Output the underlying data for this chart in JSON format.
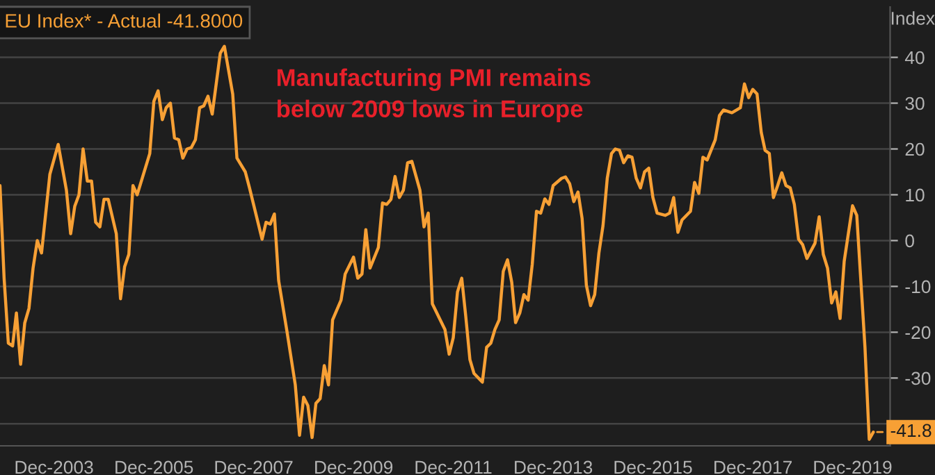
{
  "chart_data": {
    "type": "line",
    "title": "EU Index* - Actual -41.8000",
    "ylabel": "Index",
    "annotations": [
      "Manufacturing PMI remains\nbelow 2009 lows in Europe",
      {
        "text": "-41.8",
        "x": "2020-05",
        "y": -41.8
      }
    ],
    "x": [
      "2002-11",
      "2002-12",
      "2003-01",
      "2003-02",
      "2003-03",
      "2003-04",
      "2003-05",
      "2003-06",
      "2003-07",
      "2003-08",
      "2003-09",
      "2003-11",
      "2004-01",
      "2004-03",
      "2004-04",
      "2004-05",
      "2004-06",
      "2004-07",
      "2004-08",
      "2004-09",
      "2004-10",
      "2004-11",
      "2004-12",
      "2005-01",
      "2005-03",
      "2005-04",
      "2005-05",
      "2005-06",
      "2005-07",
      "2005-08",
      "2005-11",
      "2005-12",
      "2006-01",
      "2006-02",
      "2006-03",
      "2006-04",
      "2006-05",
      "2006-06",
      "2006-07",
      "2006-08",
      "2006-09",
      "2006-10",
      "2006-11",
      "2006-12",
      "2007-01",
      "2007-02",
      "2007-04",
      "2007-05",
      "2007-07",
      "2007-08",
      "2007-10",
      "2007-11",
      "2008-02",
      "2008-03",
      "2008-04",
      "2008-05",
      "2008-06",
      "2008-08",
      "2008-10",
      "2008-11",
      "2008-12",
      "2009-01",
      "2009-02",
      "2009-03",
      "2009-04",
      "2009-05",
      "2009-06",
      "2009-07",
      "2009-09",
      "2009-10",
      "2009-12",
      "2010-01",
      "2010-02",
      "2010-03",
      "2010-04",
      "2010-06",
      "2010-07",
      "2010-08",
      "2010-09",
      "2010-10",
      "2010-11",
      "2010-12",
      "2011-01",
      "2011-02",
      "2011-04",
      "2011-05",
      "2011-06",
      "2011-07",
      "2011-10",
      "2011-11",
      "2011-12",
      "2012-01",
      "2012-02",
      "2012-03",
      "2012-04",
      "2012-05",
      "2012-07",
      "2012-08",
      "2012-09",
      "2012-10",
      "2012-11",
      "2012-12",
      "2013-01",
      "2013-02",
      "2013-03",
      "2013-04",
      "2013-05",
      "2013-06",
      "2013-07",
      "2013-08",
      "2013-09",
      "2013-10",
      "2013-11",
      "2013-12",
      "2014-02",
      "2014-03",
      "2014-04",
      "2014-05",
      "2014-06",
      "2014-07",
      "2014-08",
      "2014-09",
      "2014-10",
      "2014-11",
      "2014-12",
      "2015-01",
      "2015-02",
      "2015-03",
      "2015-04",
      "2015-05",
      "2015-06",
      "2015-07",
      "2015-08",
      "2015-09",
      "2015-10",
      "2015-11",
      "2015-12",
      "2016-01",
      "2016-03",
      "2016-04",
      "2016-05",
      "2016-06",
      "2016-07",
      "2016-09",
      "2016-10",
      "2016-11",
      "2016-12",
      "2017-01",
      "2017-03",
      "2017-04",
      "2017-05",
      "2017-06",
      "2017-07",
      "2017-09",
      "2017-10",
      "2017-11",
      "2017-12",
      "2018-01",
      "2018-02",
      "2018-03",
      "2018-04",
      "2018-05",
      "2018-06",
      "2018-07",
      "2018-08",
      "2018-09",
      "2018-10",
      "2018-11",
      "2018-12",
      "2019-01",
      "2019-03",
      "2019-04",
      "2019-05",
      "2019-06",
      "2019-07",
      "2019-08",
      "2019-09",
      "2019-10",
      "2019-12",
      "2020-01",
      "2020-03",
      "2020-04",
      "2020-05"
    ],
    "series": [
      {
        "color": "#f7a035",
        "values": [
          12,
          -8.2,
          -22.4,
          -23,
          -15.8,
          -27,
          -18,
          -14.8,
          -6,
          0,
          -2.7,
          14.5,
          21,
          11,
          1.5,
          7.5,
          10,
          20,
          13,
          13,
          4,
          3,
          9,
          9,
          1.5,
          -12.7,
          -5.7,
          -3,
          12,
          10,
          19,
          30.4,
          32.7,
          26.4,
          29,
          30,
          22.4,
          22,
          18,
          20,
          20.3,
          22,
          29,
          29.4,
          31.5,
          27.6,
          40.9,
          42.4,
          32,
          18,
          15,
          11.5,
          0.3,
          4,
          3.6,
          5.8,
          -8.7,
          -19.8,
          -31.5,
          -42.5,
          -34.2,
          -36,
          -43,
          -35.5,
          -34.5,
          -27.3,
          -31.5,
          -17.3,
          -13,
          -7.3,
          -3.6,
          -8.2,
          -7.3,
          2.4,
          -6,
          -1.5,
          8.2,
          7.9,
          9,
          14,
          9.4,
          11,
          17,
          17.3,
          11,
          3,
          6,
          -13.8,
          -19.4,
          -24.8,
          -21.2,
          -11.2,
          -8.2,
          -16.4,
          -26,
          -29,
          -30.9,
          -23.3,
          -22.4,
          -19.4,
          -17.3,
          -6.7,
          -4.2,
          -9.1,
          -17.9,
          -15.8,
          -11.8,
          -13,
          -5.2,
          6.4,
          6,
          9.1,
          7.9,
          12,
          13.6,
          13.9,
          12.4,
          8.5,
          10.6,
          4.8,
          -9.7,
          -14.2,
          -11.8,
          -2.7,
          3.3,
          13.6,
          19,
          20,
          19.7,
          17,
          18.5,
          18.2,
          13.6,
          11.5,
          15,
          15.8,
          9.4,
          6,
          5.5,
          6,
          9.4,
          1.8,
          4.5,
          6.4,
          12.7,
          10.3,
          18.2,
          17.6,
          22,
          27.3,
          28.5,
          28.2,
          27.9,
          29,
          34.2,
          31.2,
          33,
          32,
          23.6,
          19.7,
          19,
          9.4,
          12,
          14.8,
          12,
          11.5,
          7.9,
          0.3,
          -0.9,
          -3.9,
          -0.6,
          5.2,
          -3,
          -6,
          -13.6,
          -11.2,
          -17,
          -4.5,
          7.6,
          5.5,
          -23.3,
          -43.4,
          -41.8
        ]
      }
    ],
    "xlim": [
      "2002-11",
      "2020-09"
    ],
    "xticks": [
      {
        "value": "2003-12",
        "label": "Dec-2003"
      },
      {
        "value": "2005-12",
        "label": "Dec-2005"
      },
      {
        "value": "2007-12",
        "label": "Dec-2007"
      },
      {
        "value": "2009-12",
        "label": "Dec-2009"
      },
      {
        "value": "2011-12",
        "label": "Dec-2011"
      },
      {
        "value": "2013-12",
        "label": "Dec-2013"
      },
      {
        "value": "2015-12",
        "label": "Dec-2015"
      },
      {
        "value": "2017-12",
        "label": "Dec-2017"
      },
      {
        "value": "2019-12",
        "label": "Dec-2019"
      }
    ],
    "ylim": [
      -44.8,
      51
    ],
    "yticks": [
      {
        "value": -40,
        "label": null
      },
      -30,
      -20,
      -10,
      0,
      10,
      20,
      30,
      40
    ],
    "grid": "y",
    "legend": false,
    "marker": "none",
    "line_style": "solid"
  }
}
